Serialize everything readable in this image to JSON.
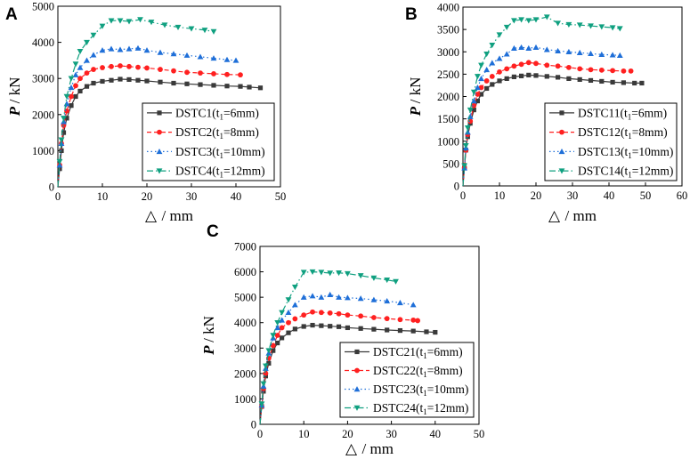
{
  "colors": {
    "series": [
      "#3a3a3a",
      "#ff2020",
      "#1f6fd8",
      "#10a080"
    ]
  },
  "chart_data": [
    {
      "panel": "A",
      "type": "line",
      "xlabel_symbol": "△",
      "xlabel_unit": "/ mm",
      "ylabel_symbol": "P",
      "ylabel_unit": "/ kN",
      "xlim": [
        0,
        50
      ],
      "ylim": [
        0,
        5000
      ],
      "xticks": [
        0,
        10,
        20,
        30,
        40,
        50
      ],
      "yticks": [
        0,
        1000,
        2000,
        3000,
        4000,
        5000
      ],
      "legend_position": "right-lower",
      "series": [
        {
          "name": "DSTC1",
          "t_sub": "1",
          "t_val": "=6mm)",
          "marker": "square",
          "dash": "solid",
          "x": [
            0,
            0.4,
            0.8,
            1.3,
            2,
            3,
            4,
            5,
            6.5,
            8,
            10,
            12,
            14,
            16,
            18,
            20,
            23,
            26,
            29,
            32,
            35,
            38,
            41,
            43,
            45.5
          ],
          "y": [
            0,
            500,
            1000,
            1500,
            1900,
            2250,
            2500,
            2650,
            2780,
            2870,
            2920,
            2950,
            2980,
            2970,
            2950,
            2930,
            2900,
            2870,
            2850,
            2830,
            2810,
            2790,
            2780,
            2760,
            2740
          ]
        },
        {
          "name": "DSTC2",
          "t_sub": "1",
          "t_val": "=8mm)",
          "marker": "circle",
          "dash": "dash",
          "x": [
            0,
            0.4,
            0.8,
            1.3,
            2,
            3,
            4,
            5,
            6.5,
            8,
            10,
            12,
            14,
            16,
            18,
            20,
            23,
            26,
            29,
            32,
            35,
            38,
            41
          ],
          "y": [
            0,
            600,
            1200,
            1700,
            2100,
            2500,
            2800,
            3000,
            3150,
            3250,
            3300,
            3330,
            3350,
            3330,
            3310,
            3290,
            3250,
            3210,
            3170,
            3150,
            3130,
            3110,
            3100
          ]
        },
        {
          "name": "DSTC3",
          "t_sub": "1",
          "t_val": "=10mm)",
          "marker": "triangle-up",
          "dash": "dot",
          "x": [
            0,
            0.4,
            0.8,
            1.3,
            2,
            3,
            4,
            5,
            6.5,
            8,
            10,
            12,
            14,
            16,
            18,
            20,
            23,
            26,
            29,
            32,
            35,
            38,
            40
          ],
          "y": [
            0,
            600,
            1200,
            1800,
            2300,
            2750,
            3100,
            3300,
            3500,
            3650,
            3780,
            3820,
            3800,
            3820,
            3840,
            3780,
            3720,
            3680,
            3640,
            3600,
            3560,
            3520,
            3500
          ]
        },
        {
          "name": "DSTC4",
          "t_sub": "1",
          "t_val": "=12mm)",
          "marker": "triangle-down",
          "dash": "dashdot",
          "x": [
            0,
            0.4,
            0.8,
            1.3,
            2,
            3,
            4,
            5,
            6.5,
            8,
            10,
            12,
            14,
            16,
            18.5,
            21,
            24,
            27,
            30,
            33,
            35
          ],
          "y": [
            0,
            700,
            1300,
            1900,
            2500,
            3000,
            3400,
            3750,
            4000,
            4200,
            4450,
            4600,
            4600,
            4580,
            4630,
            4560,
            4480,
            4420,
            4380,
            4340,
            4300
          ]
        }
      ]
    },
    {
      "panel": "B",
      "type": "line",
      "xlabel_symbol": "△",
      "xlabel_unit": "/ mm",
      "ylabel_symbol": "P",
      "ylabel_unit": "/ kN",
      "xlim": [
        0,
        60
      ],
      "ylim": [
        0,
        4000
      ],
      "xticks": [
        0,
        10,
        20,
        30,
        40,
        50,
        60
      ],
      "yticks": [
        0,
        500,
        1000,
        1500,
        2000,
        2500,
        3000,
        3500,
        4000
      ],
      "legend_position": "right-lower",
      "series": [
        {
          "name": "DSTC11",
          "t_sub": "1",
          "t_val": "=6mm)",
          "marker": "square",
          "dash": "solid",
          "x": [
            0,
            0.4,
            0.8,
            1.3,
            2,
            3,
            4,
            5,
            6.5,
            8,
            10,
            12,
            14,
            16,
            18,
            20,
            23,
            26,
            29,
            32,
            35,
            38,
            41,
            44,
            47,
            49
          ],
          "y": [
            0,
            400,
            800,
            1100,
            1400,
            1700,
            1900,
            2050,
            2180,
            2270,
            2350,
            2400,
            2440,
            2460,
            2480,
            2470,
            2450,
            2430,
            2400,
            2380,
            2360,
            2340,
            2320,
            2310,
            2300,
            2300
          ]
        },
        {
          "name": "DSTC12",
          "t_sub": "1",
          "t_val": "=8mm)",
          "marker": "circle",
          "dash": "dash",
          "x": [
            0,
            0.4,
            0.8,
            1.3,
            2,
            3,
            4,
            5,
            6.5,
            8,
            10,
            12,
            14,
            16,
            18,
            20,
            23,
            26,
            29,
            32,
            35,
            38,
            41,
            44,
            46
          ],
          "y": [
            0,
            400,
            800,
            1150,
            1450,
            1800,
            2050,
            2200,
            2350,
            2450,
            2550,
            2620,
            2680,
            2720,
            2760,
            2740,
            2700,
            2680,
            2650,
            2620,
            2600,
            2590,
            2580,
            2570,
            2570
          ]
        },
        {
          "name": "DSTC13",
          "t_sub": "1",
          "t_val": "=10mm)",
          "marker": "triangle-up",
          "dash": "dot",
          "x": [
            0,
            0.4,
            0.8,
            1.3,
            2,
            3,
            4,
            5,
            6.5,
            8,
            10,
            12,
            14,
            16,
            18,
            20,
            23,
            26,
            29,
            32,
            35,
            38,
            41,
            43
          ],
          "y": [
            0,
            400,
            850,
            1200,
            1550,
            1900,
            2200,
            2400,
            2600,
            2750,
            2850,
            2950,
            3080,
            3100,
            3080,
            3100,
            3050,
            3020,
            3000,
            2980,
            2960,
            2940,
            2930,
            2920
          ]
        },
        {
          "name": "DSTC14",
          "t_sub": "1",
          "t_val": "=12mm)",
          "marker": "triangle-down",
          "dash": "dashdot",
          "x": [
            0,
            0.4,
            0.8,
            1.3,
            2,
            3,
            4,
            5,
            6.5,
            8,
            10,
            12,
            14,
            16,
            18,
            20,
            23,
            26,
            29,
            32,
            35,
            38,
            41,
            43
          ],
          "y": [
            0,
            450,
            900,
            1300,
            1700,
            2100,
            2450,
            2700,
            2950,
            3150,
            3380,
            3550,
            3700,
            3720,
            3700,
            3720,
            3780,
            3640,
            3610,
            3600,
            3580,
            3560,
            3540,
            3520
          ]
        }
      ]
    },
    {
      "panel": "C",
      "type": "line",
      "xlabel_symbol": "△",
      "xlabel_unit": "/ mm",
      "ylabel_symbol": "P",
      "ylabel_unit": "/ kN",
      "xlim": [
        0,
        50
      ],
      "ylim": [
        0,
        7000
      ],
      "xticks": [
        0,
        10,
        20,
        30,
        40,
        50
      ],
      "yticks": [
        0,
        1000,
        2000,
        3000,
        4000,
        5000,
        6000,
        7000
      ],
      "legend_position": "right-lower",
      "series": [
        {
          "name": "DSTC21",
          "t_sub": "1",
          "t_val": "=6mm)",
          "marker": "square",
          "dash": "solid",
          "x": [
            0,
            0.4,
            0.8,
            1.3,
            2,
            3,
            4,
            5,
            6.5,
            8,
            10,
            12,
            14,
            16,
            18,
            20,
            23,
            26,
            29,
            32,
            35,
            38,
            40
          ],
          "y": [
            0,
            700,
            1300,
            1900,
            2400,
            2900,
            3200,
            3400,
            3600,
            3750,
            3850,
            3900,
            3880,
            3860,
            3840,
            3800,
            3770,
            3740,
            3710,
            3690,
            3670,
            3640,
            3620
          ]
        },
        {
          "name": "DSTC22",
          "t_sub": "1",
          "t_val": "=8mm)",
          "marker": "circle",
          "dash": "dash",
          "x": [
            0,
            0.4,
            0.8,
            1.3,
            2,
            3,
            4,
            5,
            6.5,
            8,
            10,
            12,
            14,
            16,
            18,
            20,
            23,
            26,
            29,
            32,
            35,
            36
          ],
          "y": [
            0,
            700,
            1400,
            2000,
            2600,
            3100,
            3500,
            3800,
            4000,
            4150,
            4300,
            4420,
            4400,
            4380,
            4350,
            4300,
            4260,
            4200,
            4160,
            4120,
            4100,
            4080
          ]
        },
        {
          "name": "DSTC23",
          "t_sub": "1",
          "t_val": "=10mm)",
          "marker": "triangle-up",
          "dash": "dot",
          "x": [
            0,
            0.4,
            0.8,
            1.3,
            2,
            3,
            4,
            5,
            6.5,
            8,
            10,
            12,
            14,
            16,
            18,
            20,
            23,
            26,
            29,
            32,
            35
          ],
          "y": [
            0,
            750,
            1500,
            2200,
            2800,
            3400,
            3800,
            4100,
            4400,
            4700,
            5000,
            5050,
            5000,
            5100,
            5000,
            4980,
            4950,
            4900,
            4850,
            4780,
            4700
          ]
        },
        {
          "name": "DSTC24",
          "t_sub": "1",
          "t_val": "=12mm)",
          "marker": "triangle-down",
          "dash": "dashdot",
          "x": [
            0,
            0.4,
            0.8,
            1.3,
            2,
            3,
            4,
            5,
            6.5,
            8,
            10,
            12,
            14,
            16,
            18,
            20,
            23,
            26,
            29,
            31
          ],
          "y": [
            0,
            800,
            1600,
            2300,
            2900,
            3500,
            4000,
            4400,
            4900,
            5400,
            5980,
            6000,
            5980,
            5950,
            5960,
            5930,
            5850,
            5760,
            5680,
            5620
          ]
        }
      ]
    }
  ]
}
